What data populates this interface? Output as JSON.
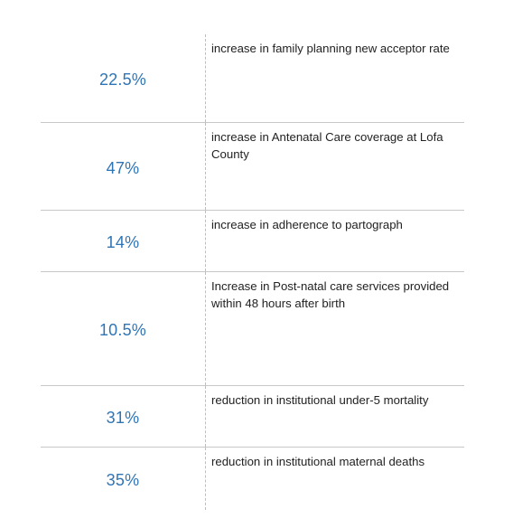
{
  "stats": [
    {
      "value": "22.5%",
      "description": "increase in family planning new acceptor rate"
    },
    {
      "value": "47%",
      "description": "increase in Antenatal Care coverage at Lofa County"
    },
    {
      "value": "14%",
      "description": "increase in adherence to partograph"
    },
    {
      "value": "10.5%",
      "description": "Increase in Post-natal care services provided within 48 hours after birth"
    },
    {
      "value": "31%",
      "description": "reduction in institutional under-5 mortality"
    },
    {
      "value": "35%",
      "description": "reduction in institutional maternal deaths"
    }
  ],
  "colors": {
    "value_text": "#2f75b5",
    "row_divider": "#c8c8c8",
    "column_divider": "#bdbdbd"
  }
}
